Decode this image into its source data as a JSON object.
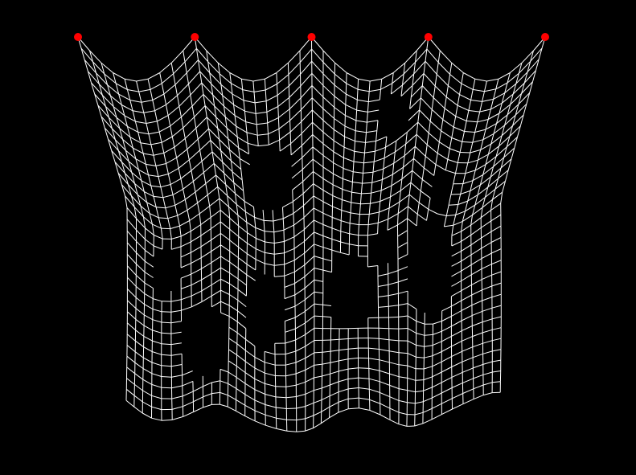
{
  "scene": {
    "background": "#000000",
    "cloth": {
      "color": "#ffffff",
      "cols": 41,
      "rows": 33,
      "pin_count": 5,
      "pin_columns": [
        0,
        10,
        20,
        30,
        40
      ],
      "torn_holes": 9
    },
    "pin": {
      "color": "#ff0000",
      "icon": "pin-point-icon"
    }
  }
}
